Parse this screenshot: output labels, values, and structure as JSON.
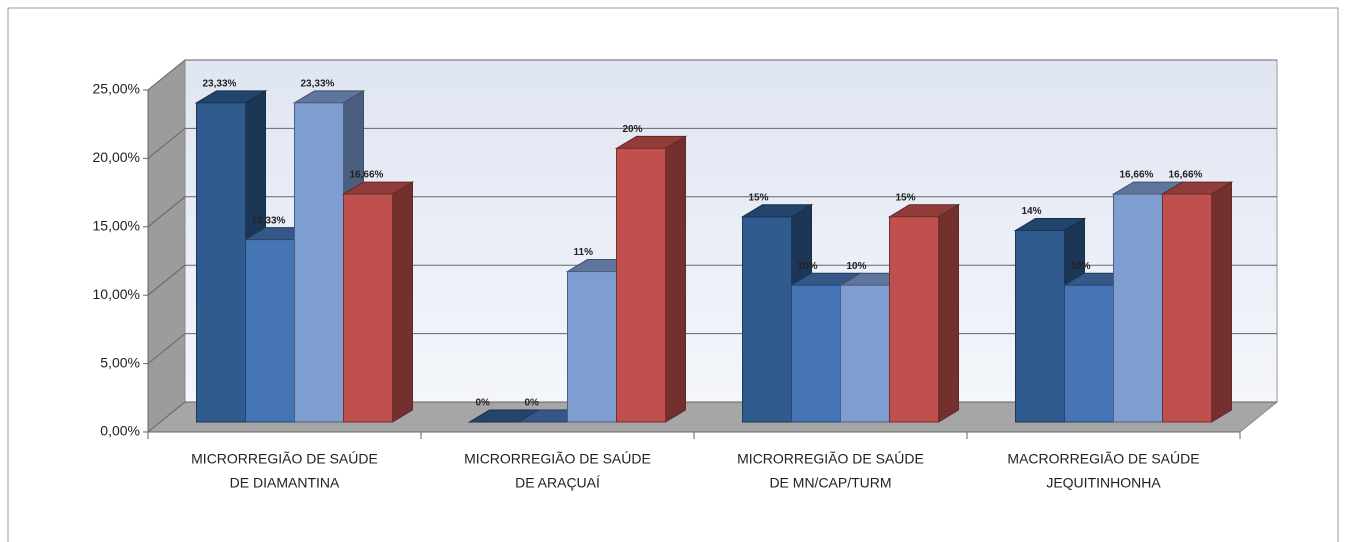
{
  "chart_data": {
    "type": "bar",
    "categories": [
      [
        "MICRORREGIÃO DE  SAÚDE",
        "DE  DIAMANTINA"
      ],
      [
        "MICRORREGIÃO DE  SAÚDE",
        "DE ARAÇUAÍ"
      ],
      [
        "MICRORREGIÃO DE  SAÚDE",
        "DE  MN/CAP/TURM"
      ],
      [
        "MACRORREGIÃO DE  SAÚDE",
        "JEQUITINHONHA"
      ]
    ],
    "series": [
      {
        "color": "#2f5b8e",
        "values": [
          23.33,
          0,
          15,
          14
        ],
        "value_labels": [
          "23,33%",
          "0%",
          "15%",
          "14%"
        ]
      },
      {
        "color": "#4675b5",
        "values": [
          13.33,
          0,
          10,
          10
        ],
        "value_labels": [
          "13,33%",
          "0%",
          "10%",
          "10%"
        ]
      },
      {
        "color": "#7e9dd0",
        "values": [
          23.33,
          11,
          10,
          16.66
        ],
        "value_labels": [
          "23,33%",
          "11%",
          "10%",
          "16,66%"
        ]
      },
      {
        "color": "#c0504d",
        "values": [
          16.66,
          20,
          15,
          16.66
        ],
        "value_labels": [
          "16,66%",
          "20%",
          "15%",
          "16,66%"
        ]
      }
    ],
    "ylim": [
      0,
      25
    ],
    "yticks": [
      {
        "value": 0,
        "label": "0,00%"
      },
      {
        "value": 5,
        "label": "5,00%"
      },
      {
        "value": 10,
        "label": "10,00%"
      },
      {
        "value": 15,
        "label": "15,00%"
      },
      {
        "value": 20,
        "label": "20,00%"
      },
      {
        "value": 25,
        "label": "25,00%"
      }
    ],
    "grid": true
  }
}
